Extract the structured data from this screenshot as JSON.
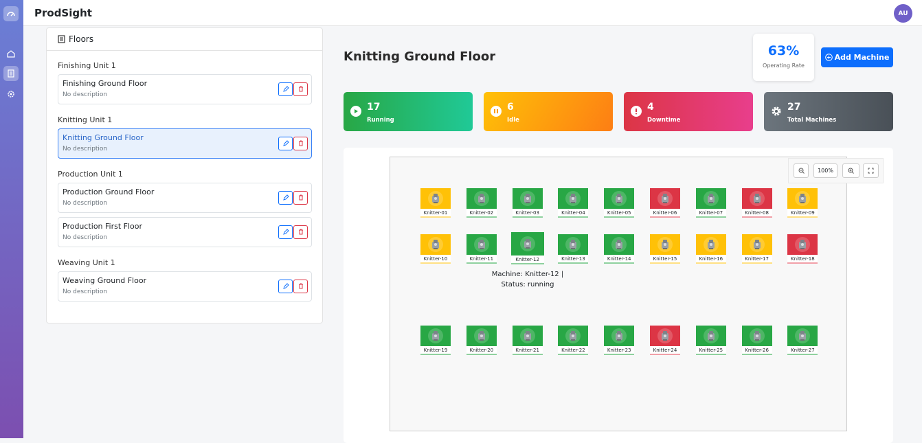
{
  "header": {
    "brand": "ProdSight",
    "avatar": "AU"
  },
  "floors_panel": {
    "title": "Floors",
    "groups": [
      {
        "name": "Finishing Unit 1",
        "floors": [
          {
            "name": "Finishing Ground Floor",
            "description": "No description"
          }
        ]
      },
      {
        "name": "Knitting Unit 1",
        "floors": [
          {
            "name": "Knitting Ground Floor",
            "description": "No description",
            "selected": true
          }
        ]
      },
      {
        "name": "Production Unit 1",
        "floors": [
          {
            "name": "Production Ground Floor",
            "description": "No description"
          },
          {
            "name": "Production First Floor",
            "description": "No description"
          }
        ]
      },
      {
        "name": "Weaving Unit 1",
        "floors": [
          {
            "name": "Weaving Ground Floor",
            "description": "No description"
          }
        ]
      }
    ]
  },
  "main": {
    "title": "Knitting Ground Floor",
    "operating_rate": {
      "value": "63%",
      "label": "Operating Rate"
    },
    "add_button": "Add Machine",
    "stats": [
      {
        "value": "17",
        "label": "Running"
      },
      {
        "value": "6",
        "label": "Idle"
      },
      {
        "value": "4",
        "label": "Downtime"
      },
      {
        "value": "27",
        "label": "Total Machines"
      }
    ],
    "zoom": "100%",
    "machines": [
      {
        "name": "Knitter-01",
        "status": "idle"
      },
      {
        "name": "Knitter-02",
        "status": "running"
      },
      {
        "name": "Knitter-03",
        "status": "running"
      },
      {
        "name": "Knitter-04",
        "status": "running"
      },
      {
        "name": "Knitter-05",
        "status": "running"
      },
      {
        "name": "Knitter-06",
        "status": "downtime"
      },
      {
        "name": "Knitter-07",
        "status": "running"
      },
      {
        "name": "Knitter-08",
        "status": "downtime"
      },
      {
        "name": "Knitter-09",
        "status": "idle"
      },
      {
        "name": "Knitter-10",
        "status": "idle"
      },
      {
        "name": "Knitter-11",
        "status": "running"
      },
      {
        "name": "Knitter-12",
        "status": "running",
        "hovered": true
      },
      {
        "name": "Knitter-13",
        "status": "running"
      },
      {
        "name": "Knitter-14",
        "status": "running"
      },
      {
        "name": "Knitter-15",
        "status": "idle"
      },
      {
        "name": "Knitter-16",
        "status": "idle"
      },
      {
        "name": "Knitter-17",
        "status": "idle"
      },
      {
        "name": "Knitter-18",
        "status": "downtime"
      },
      {
        "name": "Knitter-19",
        "status": "running"
      },
      {
        "name": "Knitter-20",
        "status": "running"
      },
      {
        "name": "Knitter-21",
        "status": "running"
      },
      {
        "name": "Knitter-22",
        "status": "running"
      },
      {
        "name": "Knitter-23",
        "status": "running"
      },
      {
        "name": "Knitter-24",
        "status": "downtime"
      },
      {
        "name": "Knitter-25",
        "status": "running"
      },
      {
        "name": "Knitter-26",
        "status": "running"
      },
      {
        "name": "Knitter-27",
        "status": "running"
      }
    ],
    "tooltip": [
      "Machine: Knitter-12 |",
      "Status: running"
    ]
  }
}
